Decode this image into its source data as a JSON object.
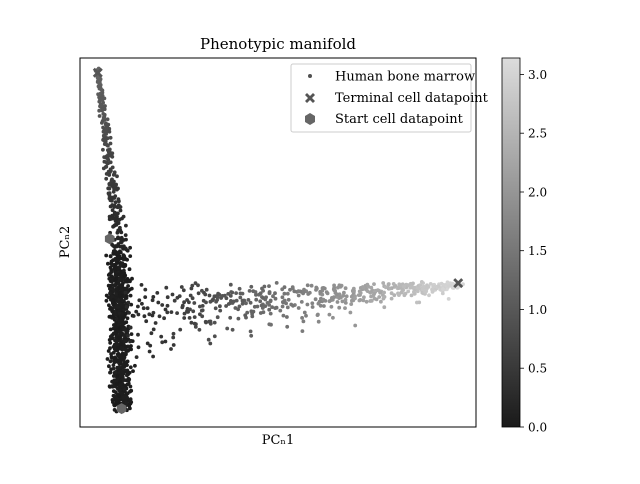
{
  "chart_data": {
    "type": "scatter",
    "title": "Phenotypic manifold",
    "xlabel": "PCₙ1",
    "ylabel": "PCₙ2",
    "xlim": [
      0,
      100
    ],
    "ylim": [
      0,
      100
    ],
    "x_ticks_shown": false,
    "y_ticks_shown": false,
    "legend": {
      "placement": "top-right",
      "entries": [
        {
          "label": "Human bone marrow",
          "marker": "dot",
          "color": "#505050"
        },
        {
          "label": "Terminal cell datapoint",
          "marker": "x",
          "color": "#555555"
        },
        {
          "label": "Start cell datapoint",
          "marker": "hexagon",
          "color": "#666666"
        }
      ]
    },
    "colorbar": {
      "range": [
        0.0,
        3.14
      ],
      "ticks": [
        "0.0",
        "0.5",
        "1.0",
        "1.5",
        "2.0",
        "2.5",
        "3.0"
      ],
      "tick_values": [
        0.0,
        0.5,
        1.0,
        1.5,
        2.0,
        2.5,
        3.0
      ],
      "colormap": "gray",
      "low_color": "#1a1a1a",
      "high_color": "#dcdcdc"
    },
    "series": [
      {
        "name": "Human bone marrow",
        "branches": [
          {
            "from": [
              4.5,
              96
            ],
            "to": [
              10.5,
              47
            ],
            "value_from": 1.2,
            "value_to": 0.1
          },
          {
            "from": [
              10.5,
              47
            ],
            "to": [
              10.5,
              5
            ],
            "value_from": 0.1,
            "value_to": 0.0
          },
          {
            "from": [
              10.5,
              37
            ],
            "to": [
              95.5,
              39
            ],
            "value_from": 0.2,
            "value_to": 3.1
          }
        ]
      },
      {
        "name": "Terminal cell datapoint",
        "points": [
          [
            4.5,
            96
          ],
          [
            95.5,
            39
          ]
        ]
      },
      {
        "name": "Start cell datapoint",
        "points": [
          [
            10.5,
            5
          ],
          [
            7.5,
            51
          ]
        ]
      }
    ]
  }
}
